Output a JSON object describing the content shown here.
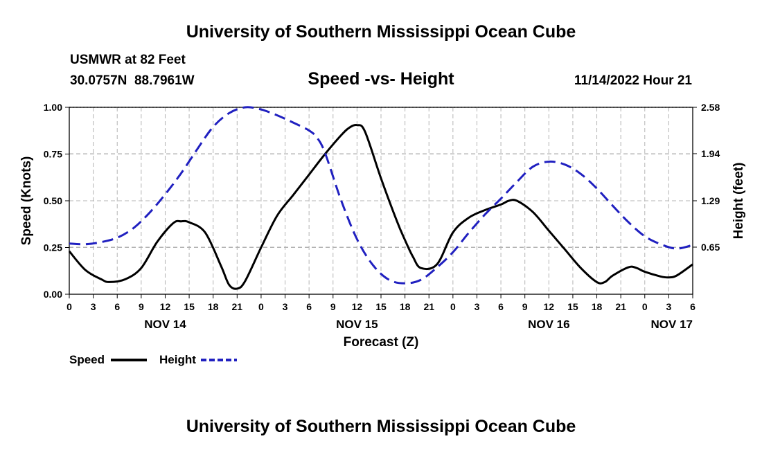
{
  "page": {
    "title": "University of Southern Mississippi Ocean Cube",
    "station": "USMWR at 82 Feet",
    "coords": "30.0757N  88.7961W",
    "datetime": "11/14/2022 Hour 21",
    "footer_title": "University of Southern Mississippi Ocean Cube"
  },
  "chart_data": {
    "type": "line",
    "title": "Speed -vs- Height",
    "xlabel": "Forecast (Z)",
    "ylabel": "Speed (Knots)",
    "y2label": "Height (feet)",
    "x_unit": "hours from NOV 14 00Z",
    "xlim": [
      0,
      78
    ],
    "ylim": [
      0,
      1.0
    ],
    "y2lim": [
      0,
      2.58
    ],
    "x_ticks": [
      {
        "x": 0,
        "label": "0"
      },
      {
        "x": 3,
        "label": "3"
      },
      {
        "x": 6,
        "label": "6"
      },
      {
        "x": 9,
        "label": "9"
      },
      {
        "x": 12,
        "label": "12"
      },
      {
        "x": 15,
        "label": "15"
      },
      {
        "x": 18,
        "label": "18"
      },
      {
        "x": 21,
        "label": "21"
      },
      {
        "x": 24,
        "label": "0"
      },
      {
        "x": 27,
        "label": "3"
      },
      {
        "x": 30,
        "label": "6"
      },
      {
        "x": 33,
        "label": "9"
      },
      {
        "x": 36,
        "label": "12"
      },
      {
        "x": 39,
        "label": "15"
      },
      {
        "x": 42,
        "label": "18"
      },
      {
        "x": 45,
        "label": "21"
      },
      {
        "x": 48,
        "label": "0"
      },
      {
        "x": 51,
        "label": "3"
      },
      {
        "x": 54,
        "label": "6"
      },
      {
        "x": 57,
        "label": "9"
      },
      {
        "x": 60,
        "label": "12"
      },
      {
        "x": 63,
        "label": "15"
      },
      {
        "x": 66,
        "label": "18"
      },
      {
        "x": 69,
        "label": "21"
      },
      {
        "x": 72,
        "label": "0"
      },
      {
        "x": 75,
        "label": "3"
      },
      {
        "x": 78,
        "label": "6"
      }
    ],
    "date_labels": [
      {
        "x": 12,
        "label": "NOV 14"
      },
      {
        "x": 36,
        "label": "NOV 15"
      },
      {
        "x": 60,
        "label": "NOV 16"
      },
      {
        "x": 78,
        "label": "NOV 17"
      }
    ],
    "y_ticks": [
      "0.00",
      "0.25",
      "0.50",
      "0.75",
      "1.00"
    ],
    "y2_ticks": [
      {
        "v": 0.65,
        "label": "0.65"
      },
      {
        "v": 1.29,
        "label": "1.29"
      },
      {
        "v": 1.94,
        "label": "1.94"
      },
      {
        "v": 2.58,
        "label": "2.58"
      }
    ],
    "series": [
      {
        "name": "Speed",
        "axis": "left",
        "color": "#000000",
        "dash": "solid",
        "x": [
          0,
          2,
          4,
          5,
          7,
          9,
          11,
          13,
          14,
          15,
          17,
          19,
          20,
          21,
          22,
          24,
          26,
          28,
          30,
          32,
          34,
          35,
          36,
          37,
          39,
          41,
          42,
          43,
          44,
          46,
          48,
          50,
          52,
          54,
          55,
          56,
          58,
          60,
          62,
          64,
          66,
          67,
          68,
          70,
          71,
          72,
          74,
          75,
          76,
          78
        ],
        "y": [
          0.23,
          0.13,
          0.08,
          0.065,
          0.08,
          0.14,
          0.28,
          0.38,
          0.39,
          0.385,
          0.33,
          0.15,
          0.05,
          0.03,
          0.07,
          0.25,
          0.42,
          0.53,
          0.64,
          0.75,
          0.85,
          0.89,
          0.905,
          0.87,
          0.62,
          0.39,
          0.29,
          0.2,
          0.14,
          0.16,
          0.33,
          0.41,
          0.45,
          0.48,
          0.5,
          0.5,
          0.44,
          0.34,
          0.24,
          0.14,
          0.065,
          0.065,
          0.1,
          0.145,
          0.14,
          0.12,
          0.095,
          0.09,
          0.1,
          0.16
        ]
      },
      {
        "name": "Height",
        "axis": "right",
        "color": "#2020c0",
        "dash": "dashed",
        "x": [
          0,
          2,
          4,
          6,
          8,
          10,
          12,
          14,
          16,
          18,
          20,
          22,
          24,
          26,
          28,
          30,
          31,
          32,
          34,
          36,
          38,
          40,
          42,
          44,
          46,
          48,
          50,
          52,
          54,
          56,
          58,
          60,
          62,
          64,
          66,
          68,
          70,
          72,
          74,
          76,
          78
        ],
        "y": [
          0.7,
          0.69,
          0.72,
          0.78,
          0.91,
          1.12,
          1.38,
          1.67,
          2.0,
          2.31,
          2.5,
          2.58,
          2.55,
          2.47,
          2.37,
          2.26,
          2.16,
          1.95,
          1.3,
          0.76,
          0.4,
          0.2,
          0.15,
          0.2,
          0.37,
          0.58,
          0.85,
          1.1,
          1.32,
          1.55,
          1.76,
          1.83,
          1.79,
          1.66,
          1.46,
          1.22,
          0.99,
          0.8,
          0.69,
          0.63,
          0.68
        ]
      }
    ]
  }
}
